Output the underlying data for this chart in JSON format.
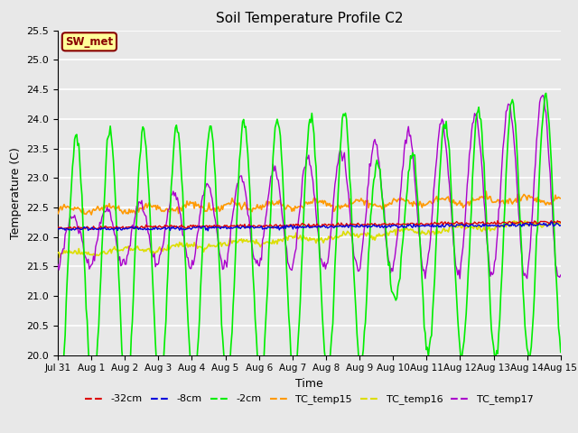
{
  "title": "Soil Temperature Profile C2",
  "xlabel": "Time",
  "ylabel": "Temperature (C)",
  "ylim": [
    20.0,
    25.5
  ],
  "yticks": [
    20.0,
    20.5,
    21.0,
    21.5,
    22.0,
    22.5,
    23.0,
    23.5,
    24.0,
    24.5,
    25.0,
    25.5
  ],
  "plot_bg_color": "#e8e8e8",
  "fig_bg_color": "#e8e8e8",
  "annotation_text": "SW_met",
  "annotation_bg": "#ffff99",
  "annotation_border": "#880000",
  "line_colors": {
    "-32cm": "#dd0000",
    "-8cm": "#0000dd",
    "-2cm": "#00ee00",
    "TC_temp15": "#ff9900",
    "TC_temp16": "#dddd00",
    "TC_temp17": "#aa00cc"
  },
  "legend_labels": [
    "-32cm",
    "-8cm",
    "-2cm",
    "TC_temp15",
    "TC_temp16",
    "TC_temp17"
  ],
  "n_points": 480,
  "x_tick_labels": [
    "Jul 31",
    "Aug 1",
    "Aug 2",
    "Aug 3",
    "Aug 4",
    "Aug 5",
    "Aug 6",
    "Aug 7",
    "Aug 8",
    "Aug 9",
    "Aug 10",
    "Aug 11",
    "Aug 12",
    "Aug 13",
    "Aug 14",
    "Aug 15"
  ],
  "x_tick_positions": [
    0,
    1,
    2,
    3,
    4,
    5,
    6,
    7,
    8,
    9,
    10,
    11,
    12,
    13,
    14,
    15
  ]
}
